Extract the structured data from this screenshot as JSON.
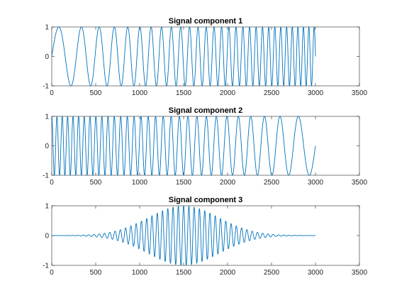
{
  "colors": {
    "line": "#0072BD",
    "axes": "#262626",
    "background": "#ffffff"
  },
  "chart_data": [
    {
      "type": "line",
      "title": "Signal component 1",
      "xlabel": "",
      "ylabel": "",
      "xlim": [
        0,
        3500
      ],
      "ylim": [
        -1,
        1
      ],
      "xticks": [
        0,
        500,
        1000,
        1500,
        2000,
        2500,
        3000,
        3500
      ],
      "yticks": [
        -1,
        0,
        1
      ],
      "grid": false,
      "series": [
        {
          "function": "sine chirp, frequency increasing with x",
          "x_range": [
            0,
            3000
          ],
          "amplitude": 1,
          "start_period": 400,
          "end_period": 70,
          "cycles": 29.5,
          "start_value": 0,
          "end_value": 0
        }
      ]
    },
    {
      "type": "line",
      "title": "Signal component 2",
      "xlabel": "",
      "ylabel": "",
      "xlim": [
        0,
        3500
      ],
      "ylim": [
        -1,
        1
      ],
      "xticks": [
        0,
        500,
        1000,
        1500,
        2000,
        2500,
        3000,
        3500
      ],
      "yticks": [
        -1,
        0,
        1
      ],
      "grid": false,
      "series": [
        {
          "function": "sine chirp, frequency decreasing with x",
          "x_range": [
            0,
            3000
          ],
          "amplitude": 1,
          "start_period": 60,
          "end_period": 300,
          "cycles": 30.75,
          "start_value": 1,
          "end_value": 0
        }
      ]
    },
    {
      "type": "line",
      "title": "Signal component 3",
      "xlabel": "",
      "ylabel": "",
      "xlim": [
        0,
        3500
      ],
      "ylim": [
        -1,
        1
      ],
      "xticks": [
        0,
        500,
        1000,
        1500,
        2000,
        2500,
        3000,
        3500
      ],
      "yticks": [
        -1,
        0,
        1
      ],
      "grid": false,
      "series": [
        {
          "function": "Gaussian-windowed sinusoid (wave packet)",
          "x_range": [
            0,
            3000
          ],
          "envelope_center": 1500,
          "envelope_sigma": 400,
          "peak_amplitude": 1,
          "carrier_period": 60
        }
      ]
    }
  ]
}
